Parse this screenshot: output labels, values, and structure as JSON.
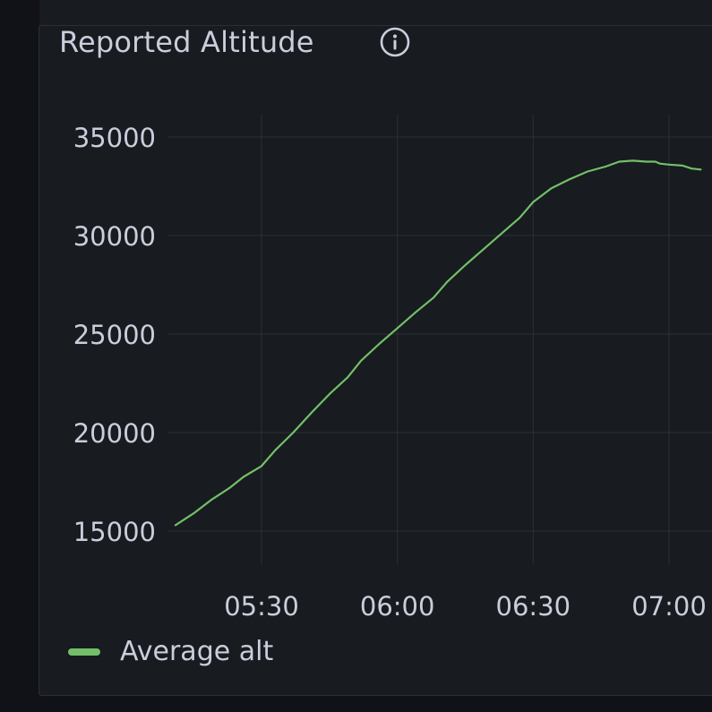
{
  "panel": {
    "title": "Reported Altitude",
    "info_icon": "info-circle-icon"
  },
  "colors": {
    "background": "#181b1f",
    "grid": "#2c2f35",
    "text": "#ccccdc",
    "series": "#73bf69"
  },
  "chart_data": {
    "type": "line",
    "title": "Reported Altitude",
    "xlabel": "",
    "ylabel": "",
    "x_ticks": [
      "05:30",
      "06:00",
      "06:30",
      "07:00"
    ],
    "y_ticks": [
      15000,
      20000,
      25000,
      30000,
      35000
    ],
    "xlim": [
      "05:11",
      "07:07"
    ],
    "ylim": [
      12500,
      36500
    ],
    "grid": true,
    "legend_position": "bottom-left",
    "series": [
      {
        "name": "Average alt",
        "x": [
          "05:11",
          "05:15",
          "05:19",
          "05:23",
          "05:26",
          "05:30",
          "05:33",
          "05:37",
          "05:41",
          "05:45",
          "05:49",
          "05:52",
          "05:56",
          "06:00",
          "06:04",
          "06:08",
          "06:11",
          "06:15",
          "06:19",
          "06:23",
          "06:27",
          "06:30",
          "06:34",
          "06:38",
          "06:42",
          "06:46",
          "06:49",
          "06:52",
          "06:55",
          "06:57",
          "06:58",
          "07:00",
          "07:03",
          "07:05",
          "07:07"
        ],
        "values": [
          15300,
          15900,
          16600,
          17200,
          17750,
          18300,
          19100,
          20000,
          21000,
          21950,
          22800,
          23650,
          24500,
          25300,
          26100,
          26850,
          27650,
          28500,
          29300,
          30100,
          30900,
          31700,
          32400,
          32850,
          33250,
          33500,
          33750,
          33800,
          33750,
          33750,
          33650,
          33600,
          33550,
          33400,
          33350
        ]
      }
    ]
  },
  "legend": {
    "label": "Average alt"
  }
}
